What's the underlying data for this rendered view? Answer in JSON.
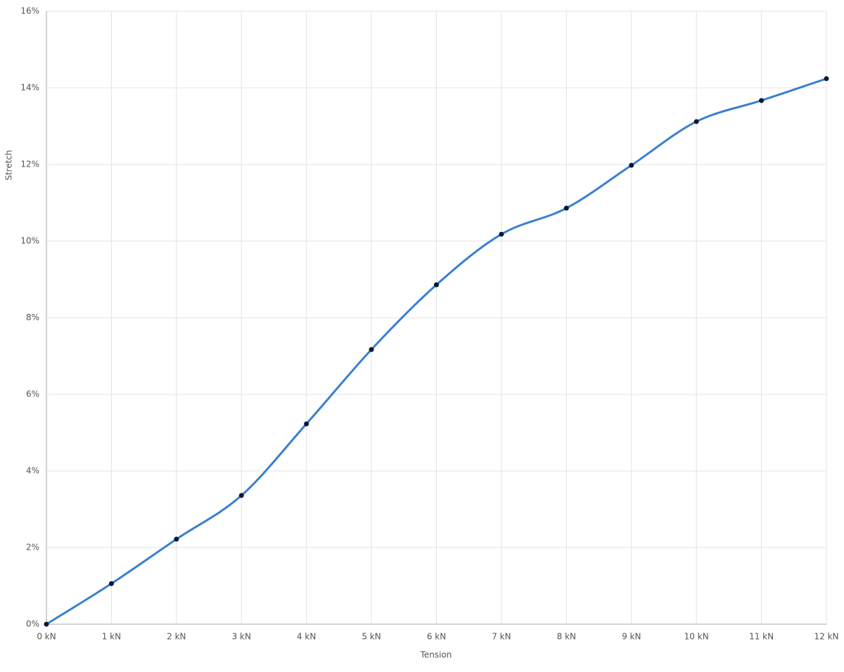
{
  "chart_data": {
    "type": "line",
    "x_label": "Tension",
    "y_label": "Stretch",
    "x": [
      0,
      1,
      2,
      3,
      4,
      5,
      6,
      7,
      8,
      9,
      10,
      11,
      12
    ],
    "series": [
      {
        "color": "#3a7fd0",
        "marker_color": "#0b1a33",
        "values": [
          0,
          1.06,
          2.22,
          3.36,
          5.23,
          7.17,
          8.86,
          10.18,
          10.86,
          11.98,
          13.12,
          13.67,
          14.24
        ]
      }
    ],
    "xlim": [
      0,
      12
    ],
    "xticks": [
      {
        "value": 0,
        "label": "0 kN"
      },
      {
        "value": 1,
        "label": "1 kN"
      },
      {
        "value": 2,
        "label": "2 kN"
      },
      {
        "value": 3,
        "label": "3 kN"
      },
      {
        "value": 4,
        "label": "4 kN"
      },
      {
        "value": 5,
        "label": "5 kN"
      },
      {
        "value": 6,
        "label": "6 kN"
      },
      {
        "value": 7,
        "label": "7 kN"
      },
      {
        "value": 8,
        "label": "8 kN"
      },
      {
        "value": 9,
        "label": "9 kN"
      },
      {
        "value": 10,
        "label": "10 kN"
      },
      {
        "value": 11,
        "label": "11 kN"
      },
      {
        "value": 12,
        "label": "12 kN"
      }
    ],
    "ylim": [
      0,
      16
    ],
    "yticks": [
      {
        "value": 0,
        "label": "0%"
      },
      {
        "value": 2,
        "label": "2%"
      },
      {
        "value": 4,
        "label": "4%"
      },
      {
        "value": 6,
        "label": "6%"
      },
      {
        "value": 8,
        "label": "8%"
      },
      {
        "value": 10,
        "label": "10%"
      },
      {
        "value": 12,
        "label": "12%"
      },
      {
        "value": 14,
        "label": "14%"
      },
      {
        "value": 16,
        "label": "16%"
      }
    ],
    "grid": true,
    "smooth": true
  }
}
